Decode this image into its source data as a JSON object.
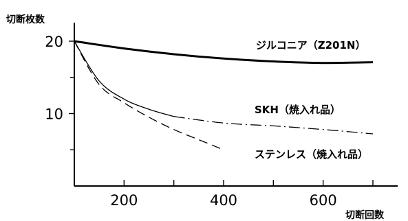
{
  "chart_data": {
    "type": "line",
    "ylabel": "切断枚数",
    "xlabel": "切断回数",
    "xlim": [
      100,
      700
    ],
    "ylim": [
      0,
      20
    ],
    "x_major_ticks": [
      200,
      400,
      600
    ],
    "x_minor_ticks": [
      300,
      500,
      700
    ],
    "y_major_ticks": [
      10,
      20
    ],
    "y_minor_ticks": [
      5,
      15
    ],
    "grid": false,
    "legend": "none (labels placed directly next to lines)",
    "series": [
      {
        "name": "ジルコニア（Z201N）",
        "line_style": "solid-thick",
        "x": [
          100,
          200,
          300,
          400,
          500,
          600,
          700
        ],
        "y": [
          20.0,
          19.0,
          18.2,
          17.6,
          17.2,
          17.0,
          17.1
        ]
      },
      {
        "name": "SKH（焼入れ品）",
        "line_style": "solid-thin then dash-dot",
        "x": [
          100,
          150,
          200,
          250,
          300,
          400,
          500,
          600,
          700
        ],
        "y": [
          20.0,
          14.5,
          12.0,
          10.6,
          9.6,
          8.7,
          8.3,
          7.8,
          7.2
        ]
      },
      {
        "name": "ステンレス（焼入れ品）",
        "line_style": "dashed",
        "x": [
          100,
          150,
          200,
          250,
          300,
          350,
          400
        ],
        "y": [
          20.0,
          14.0,
          11.5,
          9.5,
          7.8,
          6.4,
          5.0
        ]
      }
    ]
  }
}
